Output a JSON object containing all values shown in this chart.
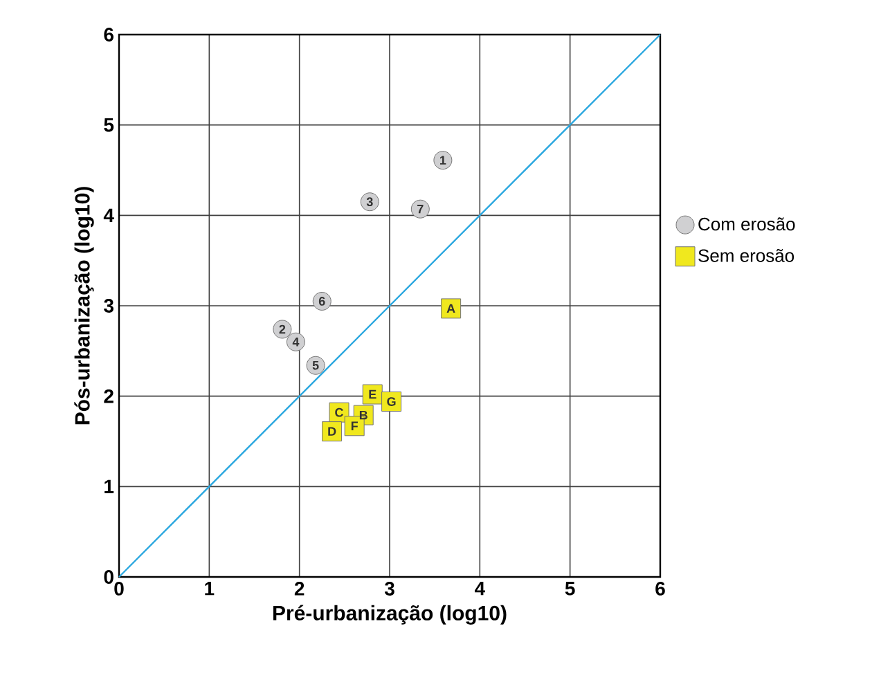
{
  "chart_data": {
    "type": "scatter",
    "xlabel": "Pré-urbanização (log10)",
    "ylabel": "Pós-urbanização (log10)",
    "xlim": [
      0,
      6
    ],
    "ylim": [
      0,
      6
    ],
    "xticks": [
      0,
      1,
      2,
      3,
      4,
      5,
      6
    ],
    "yticks": [
      0,
      1,
      2,
      3,
      4,
      5,
      6
    ],
    "grid": true,
    "legend": "right",
    "series": [
      {
        "name": "Com erosão",
        "color": "#d0d0d2",
        "marker": "circle",
        "x": [
          3.59,
          1.81,
          2.78,
          1.96,
          2.18,
          2.25,
          3.34
        ],
        "values": [
          4.61,
          2.74,
          4.15,
          2.6,
          2.34,
          3.05,
          4.07
        ]
      },
      {
        "name": "Sem erosão",
        "color": "#f0e81e",
        "marker": "square",
        "x": [
          3.68,
          2.71,
          2.44,
          2.36,
          2.81,
          2.61,
          3.02
        ],
        "values": [
          2.97,
          1.79,
          1.82,
          1.61,
          2.02,
          1.67,
          1.94
        ]
      },
      {
        "type": "line",
        "color": "#2aa7df",
        "marker": "none",
        "x": [
          0,
          6
        ],
        "values": [
          0,
          6
        ]
      }
    ],
    "annotations": [
      {
        "text": "1",
        "x": 3.59,
        "y": 4.61
      },
      {
        "text": "2",
        "x": 1.81,
        "y": 2.74
      },
      {
        "text": "3",
        "x": 2.78,
        "y": 4.15
      },
      {
        "text": "4",
        "x": 1.96,
        "y": 2.6
      },
      {
        "text": "5",
        "x": 2.18,
        "y": 2.34
      },
      {
        "text": "6",
        "x": 2.25,
        "y": 3.05
      },
      {
        "text": "7",
        "x": 3.34,
        "y": 4.07
      },
      {
        "text": "A",
        "x": 3.68,
        "y": 2.97
      },
      {
        "text": "B",
        "x": 2.71,
        "y": 1.79
      },
      {
        "text": "C",
        "x": 2.44,
        "y": 1.82
      },
      {
        "text": "D",
        "x": 2.36,
        "y": 1.61
      },
      {
        "text": "E",
        "x": 2.81,
        "y": 2.02
      },
      {
        "text": "F",
        "x": 2.61,
        "y": 1.67
      },
      {
        "text": "G",
        "x": 3.02,
        "y": 1.94
      }
    ]
  }
}
